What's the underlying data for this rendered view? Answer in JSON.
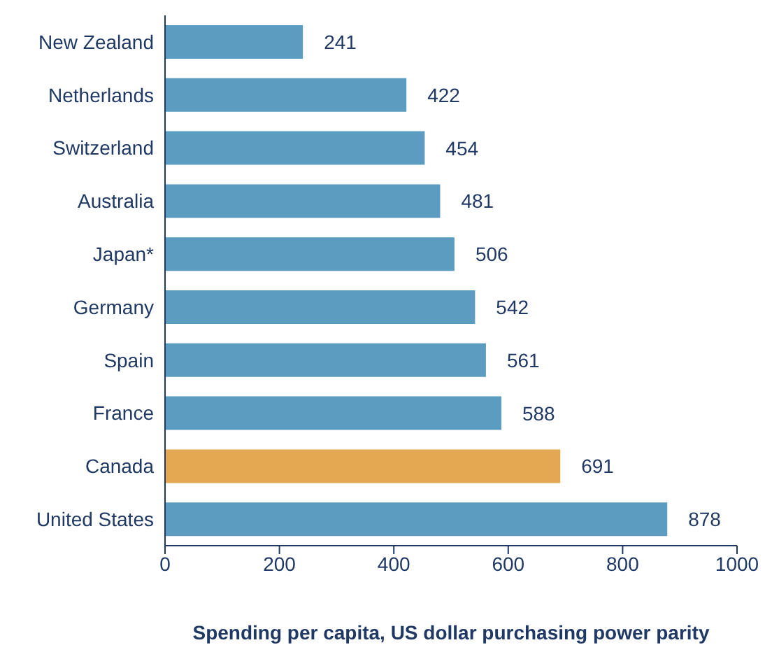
{
  "chart_data": {
    "type": "bar",
    "orientation": "horizontal",
    "xlabel": "Spending per capita, US dollar purchasing power parity",
    "categories": [
      "New Zealand",
      "Netherlands",
      "Switzerland",
      "Australia",
      "Japan*",
      "Germany",
      "Spain",
      "France",
      "Canada",
      "United States"
    ],
    "values": [
      241,
      422,
      454,
      481,
      506,
      542,
      561,
      588,
      691,
      878
    ],
    "colors": [
      "#5b9cc0",
      "#5b9cc0",
      "#5b9cc0",
      "#5b9cc0",
      "#5b9cc0",
      "#5b9cc0",
      "#5b9cc0",
      "#5b9cc0",
      "#e4a853",
      "#5b9cc0"
    ],
    "xlim": [
      0,
      1000
    ],
    "xticks": [
      0,
      200,
      400,
      600,
      800,
      1000
    ],
    "data_labels": true,
    "grid": false,
    "legend": false
  }
}
